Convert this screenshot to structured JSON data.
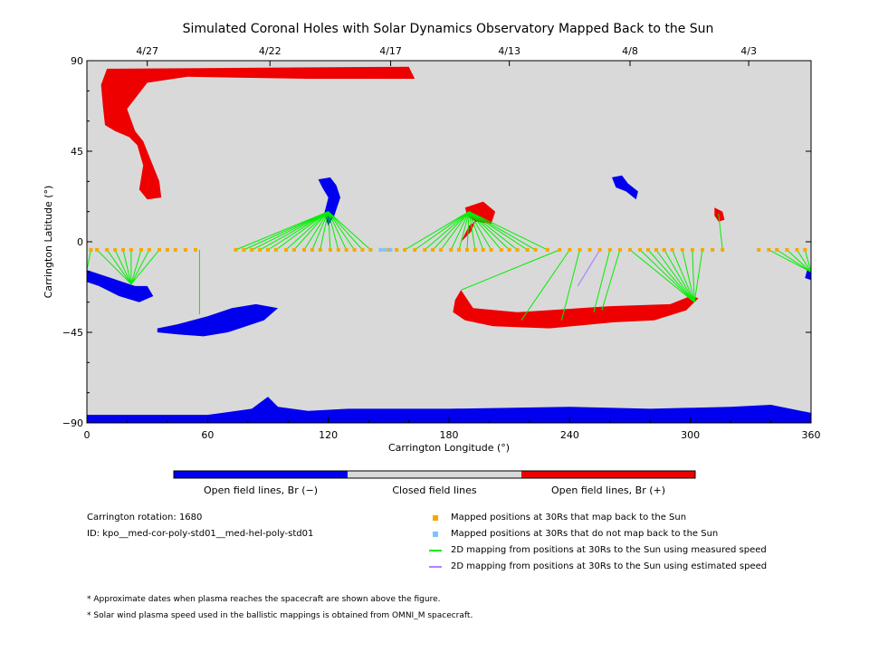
{
  "chart_data": {
    "type": "map",
    "title": "Simulated Coronal Holes with Solar Dynamics Observatory Mapped Back to the Sun",
    "xlabel": "Carrington Longitude (°)",
    "ylabel": "Carrington Latitude (°)",
    "xlim": [
      0,
      360
    ],
    "ylim": [
      -90,
      90
    ],
    "x_ticks": [
      "0",
      "60",
      "120",
      "180",
      "240",
      "300",
      "360"
    ],
    "x_tick_values": [
      0,
      60,
      120,
      180,
      240,
      300,
      360
    ],
    "y_ticks": [
      "90",
      "45",
      "0",
      "−45",
      "−90"
    ],
    "y_tick_values": [
      90,
      45,
      0,
      -45,
      -90
    ],
    "top_date_labels": [
      {
        "label": "4/27",
        "lon": 30
      },
      {
        "label": "4/22",
        "lon": 91
      },
      {
        "label": "4/17",
        "lon": 151
      },
      {
        "label": "4/13",
        "lon": 210
      },
      {
        "label": "4/8",
        "lon": 270
      },
      {
        "label": "4/3",
        "lon": 329
      }
    ],
    "colors": {
      "background": "#d9d9d9",
      "open_negative": "#0000ee",
      "open_positive": "#ee0000",
      "closed": "#d9d9d9",
      "mapped": "#f5a800",
      "not_mapped": "#80c0ff",
      "measured_line": "#00ee00",
      "estimated_line": "#b080ff"
    },
    "coronal_holes": [
      {
        "polarity": "+",
        "points": [
          [
            10,
            86
          ],
          [
            160,
            87
          ],
          [
            163,
            81
          ],
          [
            110,
            81
          ],
          [
            50,
            82
          ],
          [
            30,
            79
          ],
          [
            20,
            66
          ],
          [
            24,
            55
          ],
          [
            28,
            50
          ],
          [
            32,
            40
          ],
          [
            36,
            30
          ],
          [
            37,
            22
          ],
          [
            30,
            21
          ],
          [
            26,
            26
          ],
          [
            28,
            38
          ],
          [
            25,
            48
          ],
          [
            21,
            52
          ],
          [
            14,
            55
          ],
          [
            9,
            58
          ],
          [
            8,
            67
          ],
          [
            7,
            78
          ]
        ]
      },
      {
        "polarity": "+",
        "points": [
          [
            186,
            -24
          ],
          [
            192,
            -33
          ],
          [
            214,
            -35
          ],
          [
            260,
            -32
          ],
          [
            290,
            -31
          ],
          [
            300,
            -27
          ],
          [
            304,
            -28
          ],
          [
            298,
            -34
          ],
          [
            282,
            -39
          ],
          [
            262,
            -40
          ],
          [
            230,
            -43
          ],
          [
            202,
            -42
          ],
          [
            188,
            -39
          ],
          [
            182,
            -35
          ],
          [
            183,
            -29
          ]
        ]
      },
      {
        "polarity": "+",
        "points": [
          [
            188,
            17
          ],
          [
            197,
            20
          ],
          [
            203,
            15
          ],
          [
            201,
            9
          ],
          [
            193,
            10
          ],
          [
            189,
            13
          ]
        ]
      },
      {
        "polarity": "+",
        "points": [
          [
            186,
            0
          ],
          [
            191,
            5
          ],
          [
            193,
            10
          ],
          [
            190,
            8
          ]
        ]
      },
      {
        "polarity": "+",
        "points": [
          [
            312,
            17
          ],
          [
            316,
            15
          ],
          [
            317,
            11
          ],
          [
            314,
            10
          ],
          [
            312,
            13
          ]
        ]
      },
      {
        "polarity": "-",
        "points": [
          [
            115,
            31
          ],
          [
            121,
            32
          ],
          [
            124,
            28
          ],
          [
            126,
            22
          ],
          [
            123,
            13
          ],
          [
            120,
            8
          ],
          [
            118,
            14
          ],
          [
            120,
            22
          ],
          [
            117,
            27
          ]
        ]
      },
      {
        "polarity": "-",
        "points": [
          [
            0,
            -14
          ],
          [
            15,
            -19
          ],
          [
            24,
            -22
          ],
          [
            30,
            -22
          ],
          [
            33,
            -27
          ],
          [
            26,
            -30
          ],
          [
            16,
            -27
          ],
          [
            6,
            -22
          ],
          [
            0,
            -20
          ]
        ]
      },
      {
        "polarity": "-",
        "points": [
          [
            35,
            -43
          ],
          [
            45,
            -41
          ],
          [
            60,
            -37
          ],
          [
            72,
            -33
          ],
          [
            84,
            -31
          ],
          [
            95,
            -33
          ],
          [
            88,
            -39
          ],
          [
            70,
            -45
          ],
          [
            58,
            -47
          ],
          [
            45,
            -46
          ],
          [
            35,
            -45
          ]
        ]
      },
      {
        "polarity": "-",
        "points": [
          [
            261,
            32
          ],
          [
            266,
            33
          ],
          [
            269,
            29
          ],
          [
            274,
            25
          ],
          [
            273,
            21
          ],
          [
            268,
            25
          ],
          [
            263,
            27
          ]
        ]
      },
      {
        "polarity": "-",
        "points": [
          [
            358,
            -14
          ],
          [
            360,
            -14
          ],
          [
            360,
            -19
          ],
          [
            357,
            -18
          ]
        ]
      },
      {
        "polarity": "-",
        "points": [
          [
            0,
            -86
          ],
          [
            60,
            -86
          ],
          [
            82,
            -83
          ],
          [
            90,
            -77
          ],
          [
            95,
            -82
          ],
          [
            110,
            -84
          ],
          [
            130,
            -83
          ],
          [
            180,
            -83
          ],
          [
            240,
            -82
          ],
          [
            280,
            -83
          ],
          [
            320,
            -82
          ],
          [
            340,
            -81
          ],
          [
            355,
            -84
          ],
          [
            360,
            -85
          ],
          [
            360,
            -90
          ],
          [
            0,
            -90
          ]
        ]
      }
    ],
    "mapped_positions": [
      {
        "lat": -4,
        "lons": [
          2,
          5,
          10,
          14,
          18,
          22,
          27,
          31,
          36,
          40,
          44,
          49,
          54,
          74,
          78,
          82,
          86,
          90,
          94,
          99,
          103,
          108,
          112,
          116,
          121,
          125,
          129,
          133,
          137,
          141,
          146,
          150,
          154,
          158,
          163,
          168,
          172,
          176,
          181,
          185,
          189,
          193,
          197,
          201,
          206,
          210,
          214,
          219,
          223,
          229,
          235,
          240,
          245,
          250,
          255,
          260,
          265,
          270,
          275,
          279,
          283,
          287,
          291,
          296,
          301,
          306,
          311,
          316,
          334,
          339,
          343,
          348,
          353,
          357
        ]
      }
    ],
    "unmapped_positions": [
      {
        "lat": -4,
        "lons": [
          146,
          148,
          151
        ]
      }
    ],
    "measured_mappings": [
      {
        "to": [
          0,
          -14
        ],
        "from": [
          0,
          -4
        ]
      },
      {
        "to": [
          0,
          -14
        ],
        "from": [
          2,
          -4
        ]
      },
      {
        "to": [
          22,
          -21
        ],
        "from": [
          5,
          -4
        ]
      },
      {
        "to": [
          22,
          -21
        ],
        "from": [
          10,
          -4
        ]
      },
      {
        "to": [
          22,
          -21
        ],
        "from": [
          14,
          -4
        ]
      },
      {
        "to": [
          22,
          -21
        ],
        "from": [
          18,
          -4
        ]
      },
      {
        "to": [
          22,
          -21
        ],
        "from": [
          22,
          -4
        ]
      },
      {
        "to": [
          22,
          -21
        ],
        "from": [
          27,
          -4
        ]
      },
      {
        "to": [
          22,
          -21
        ],
        "from": [
          31,
          -4
        ]
      },
      {
        "to": [
          22,
          -21
        ],
        "from": [
          36,
          -4
        ]
      },
      {
        "to": [
          56,
          -36
        ],
        "from": [
          56,
          -4
        ]
      },
      {
        "to": [
          120,
          15
        ],
        "from": [
          74,
          -4
        ]
      },
      {
        "to": [
          120,
          15
        ],
        "from": [
          78,
          -4
        ]
      },
      {
        "to": [
          120,
          15
        ],
        "from": [
          82,
          -4
        ]
      },
      {
        "to": [
          120,
          15
        ],
        "from": [
          86,
          -4
        ]
      },
      {
        "to": [
          120,
          15
        ],
        "from": [
          90,
          -4
        ]
      },
      {
        "to": [
          120,
          15
        ],
        "from": [
          94,
          -4
        ]
      },
      {
        "to": [
          120,
          15
        ],
        "from": [
          99,
          -4
        ]
      },
      {
        "to": [
          120,
          15
        ],
        "from": [
          103,
          -4
        ]
      },
      {
        "to": [
          120,
          15
        ],
        "from": [
          108,
          -4
        ]
      },
      {
        "to": [
          120,
          15
        ],
        "from": [
          112,
          -4
        ]
      },
      {
        "to": [
          120,
          15
        ],
        "from": [
          116,
          -4
        ]
      },
      {
        "to": [
          120,
          15
        ],
        "from": [
          121,
          -4
        ]
      },
      {
        "to": [
          120,
          15
        ],
        "from": [
          125,
          -4
        ]
      },
      {
        "to": [
          120,
          15
        ],
        "from": [
          129,
          -4
        ]
      },
      {
        "to": [
          120,
          15
        ],
        "from": [
          133,
          -4
        ]
      },
      {
        "to": [
          120,
          15
        ],
        "from": [
          137,
          -4
        ]
      },
      {
        "to": [
          120,
          15
        ],
        "from": [
          141,
          -4
        ]
      },
      {
        "to": [
          190,
          15
        ],
        "from": [
          158,
          -4
        ]
      },
      {
        "to": [
          190,
          15
        ],
        "from": [
          163,
          -4
        ]
      },
      {
        "to": [
          190,
          15
        ],
        "from": [
          168,
          -4
        ]
      },
      {
        "to": [
          190,
          15
        ],
        "from": [
          172,
          -4
        ]
      },
      {
        "to": [
          190,
          15
        ],
        "from": [
          176,
          -4
        ]
      },
      {
        "to": [
          190,
          15
        ],
        "from": [
          181,
          -4
        ]
      },
      {
        "to": [
          190,
          15
        ],
        "from": [
          185,
          -4
        ]
      },
      {
        "to": [
          190,
          15
        ],
        "from": [
          189,
          -4
        ]
      },
      {
        "to": [
          190,
          15
        ],
        "from": [
          193,
          -4
        ]
      },
      {
        "to": [
          190,
          15
        ],
        "from": [
          197,
          -4
        ]
      },
      {
        "to": [
          190,
          15
        ],
        "from": [
          201,
          -4
        ]
      },
      {
        "to": [
          190,
          15
        ],
        "from": [
          206,
          -4
        ]
      },
      {
        "to": [
          190,
          15
        ],
        "from": [
          210,
          -4
        ]
      },
      {
        "to": [
          190,
          15
        ],
        "from": [
          214,
          -4
        ]
      },
      {
        "to": [
          190,
          15
        ],
        "from": [
          219,
          -4
        ]
      },
      {
        "to": [
          190,
          15
        ],
        "from": [
          223,
          -4
        ]
      },
      {
        "to": [
          190,
          15
        ],
        "from": [
          229,
          -4
        ]
      },
      {
        "to": [
          186,
          -24
        ],
        "from": [
          235,
          -4
        ]
      },
      {
        "to": [
          216,
          -39
        ],
        "from": [
          240,
          -4
        ]
      },
      {
        "to": [
          236,
          -39
        ],
        "from": [
          245,
          -4
        ]
      },
      {
        "to": [
          252,
          -35
        ],
        "from": [
          260,
          -4
        ]
      },
      {
        "to": [
          256,
          -34
        ],
        "from": [
          265,
          -4
        ]
      },
      {
        "to": [
          302,
          -30
        ],
        "from": [
          270,
          -4
        ]
      },
      {
        "to": [
          302,
          -30
        ],
        "from": [
          275,
          -4
        ]
      },
      {
        "to": [
          302,
          -30
        ],
        "from": [
          279,
          -4
        ]
      },
      {
        "to": [
          302,
          -30
        ],
        "from": [
          283,
          -4
        ]
      },
      {
        "to": [
          302,
          -30
        ],
        "from": [
          287,
          -4
        ]
      },
      {
        "to": [
          302,
          -30
        ],
        "from": [
          291,
          -4
        ]
      },
      {
        "to": [
          302,
          -30
        ],
        "from": [
          296,
          -4
        ]
      },
      {
        "to": [
          302,
          -30
        ],
        "from": [
          301,
          -4
        ]
      },
      {
        "to": [
          302,
          -30
        ],
        "from": [
          306,
          -4
        ]
      },
      {
        "to": [
          314,
          14
        ],
        "from": [
          316,
          -4
        ]
      },
      {
        "to": [
          360,
          -15
        ],
        "from": [
          339,
          -4
        ]
      },
      {
        "to": [
          360,
          -15
        ],
        "from": [
          343,
          -4
        ]
      },
      {
        "to": [
          360,
          -15
        ],
        "from": [
          348,
          -4
        ]
      },
      {
        "to": [
          360,
          -15
        ],
        "from": [
          353,
          -4
        ]
      },
      {
        "to": [
          360,
          -15
        ],
        "from": [
          357,
          -4
        ]
      }
    ],
    "estimated_mappings": [
      {
        "to": [
          244,
          -22
        ],
        "from": [
          255,
          -4
        ]
      }
    ]
  },
  "colorbar": {
    "segments": [
      {
        "label": "Open field lines, Br (−)",
        "color": "#0000ee"
      },
      {
        "label": "Closed field lines",
        "color": "#d9d9d9"
      },
      {
        "label": "Open field lines, Br (+)",
        "color": "#ee0000"
      }
    ]
  },
  "info": {
    "rotation": "Carrington rotation: 1680",
    "id": "ID: kpo__med-cor-poly-std01__med-hel-poly-std01"
  },
  "legend": [
    {
      "label": "Mapped positions at 30Rs that map back to the Sun",
      "kind": "square",
      "color": "#f5a800"
    },
    {
      "label": "Mapped positions at 30Rs that do not map back to the Sun",
      "kind": "square",
      "color": "#80c0ff"
    },
    {
      "label": "2D mapping from positions at 30Rs to the Sun using measured speed",
      "kind": "line",
      "color": "#00ee00"
    },
    {
      "label": "2D mapping from positions at 30Rs to the Sun using estimated speed",
      "kind": "line",
      "color": "#b080ff"
    }
  ],
  "footnotes": [
    "* Approximate dates when plasma reaches the spacecraft are shown above the figure.",
    "* Solar wind plasma speed used in the ballistic mappings is obtained from OMNI_M spacecraft."
  ]
}
